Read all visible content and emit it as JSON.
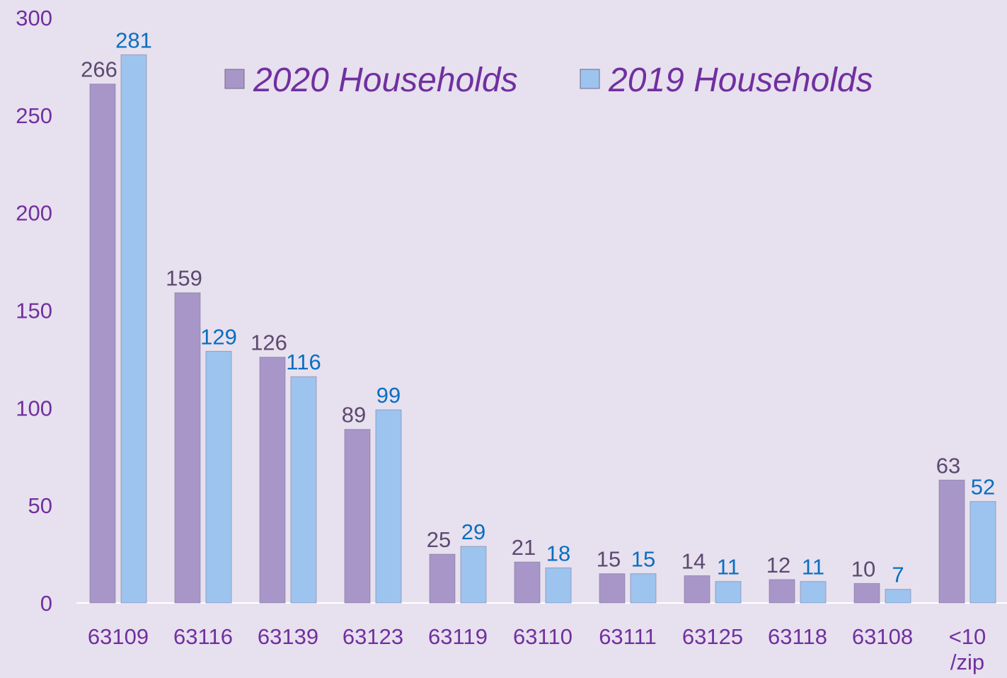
{
  "chart_data": {
    "type": "bar",
    "categories": [
      "63109",
      "63116",
      "63139",
      "63123",
      "63119",
      "63110",
      "63111",
      "63125",
      "63118",
      "63108",
      "<10 /zip"
    ],
    "series": [
      {
        "name": "2020 Households",
        "color": "#a896c9",
        "label_color": "#5b4a70",
        "values": [
          266,
          159,
          126,
          89,
          25,
          21,
          15,
          14,
          12,
          10,
          63
        ]
      },
      {
        "name": "2019 Households",
        "color": "#9dc4ef",
        "label_color": "#0a6fc0",
        "values": [
          281,
          129,
          116,
          99,
          29,
          18,
          15,
          11,
          11,
          7,
          52
        ]
      }
    ],
    "ylim": [
      0,
      300
    ],
    "yticks": [
      0,
      50,
      100,
      150,
      200,
      250,
      300
    ],
    "legend": "top"
  }
}
